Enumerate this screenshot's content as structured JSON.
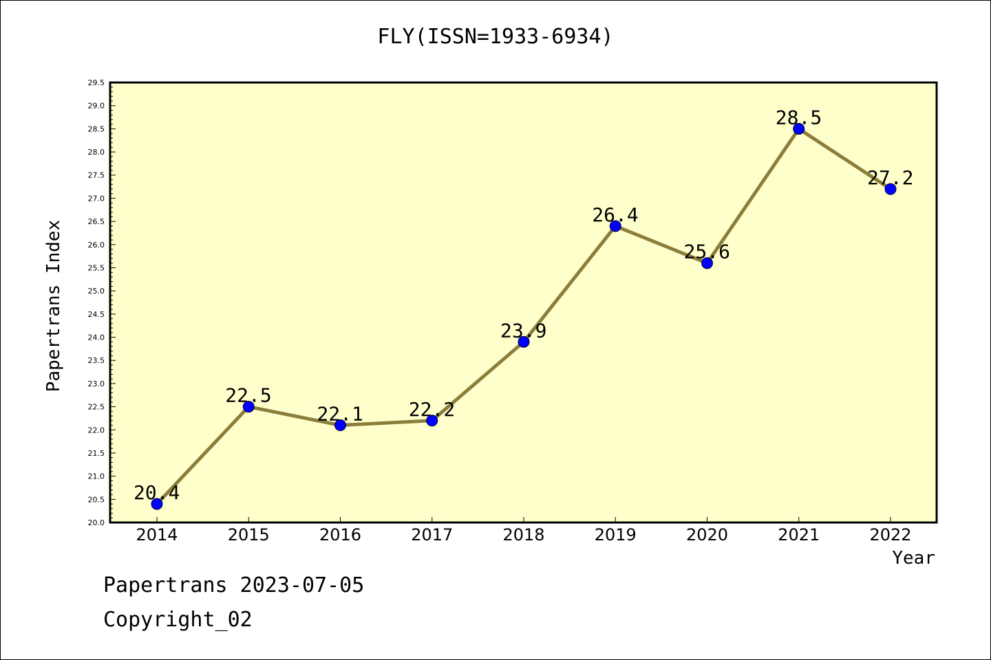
{
  "chart_data": {
    "type": "line",
    "title": "FLY(ISSN=1933-6934)",
    "xlabel": "Year",
    "ylabel": "Papertrans Index",
    "x": [
      "2014",
      "2015",
      "2016",
      "2017",
      "2018",
      "2019",
      "2020",
      "2021",
      "2022"
    ],
    "series": [
      {
        "values": [
          20.4,
          22.5,
          22.1,
          22.2,
          23.9,
          26.4,
          25.6,
          28.5,
          27.2
        ],
        "data_labels": [
          "20.4",
          "22.5",
          "22.1",
          "22.2",
          "23.9",
          "26.4",
          "25.6",
          "28.5",
          "27.2"
        ]
      }
    ],
    "ylim": [
      20.0,
      29.5
    ],
    "y_tick_labels": [
      "20.0",
      "20.5",
      "21.0",
      "21.5",
      "22.0",
      "22.5",
      "23.0",
      "23.5",
      "24.0",
      "24.5",
      "25.0",
      "25.5",
      "26.0",
      "26.5",
      "27.0",
      "27.5",
      "28.0",
      "28.5",
      "29.0",
      "29.5"
    ],
    "grid": false,
    "colors": {
      "plot_background": "#ffffcc",
      "line": "#8b7d3a",
      "marker": "#0000ff",
      "axis": "#000000"
    }
  },
  "footer": {
    "line1": "Papertrans 2023-07-05",
    "line2": "Copyright_02"
  }
}
